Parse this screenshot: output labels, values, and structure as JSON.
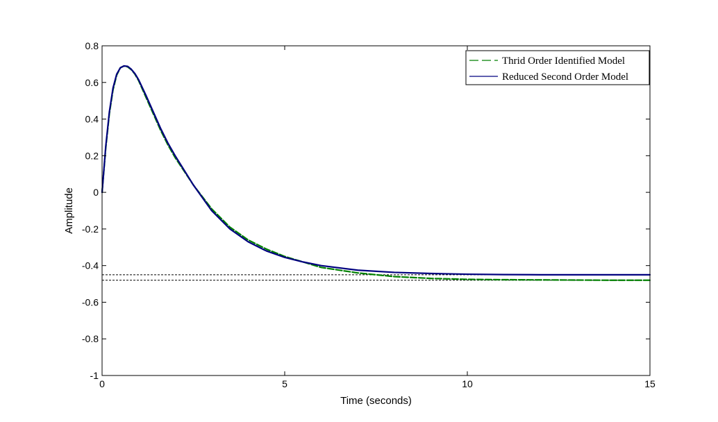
{
  "chart_data": {
    "type": "line",
    "title": "",
    "xlabel": "Time (seconds)",
    "ylabel": "Amplitude",
    "xlim": [
      0,
      15
    ],
    "ylim": [
      -1,
      0.8
    ],
    "xticks": [
      0,
      5,
      10,
      15
    ],
    "yticks": [
      -1,
      -0.8,
      -0.6,
      -0.4,
      -0.2,
      0,
      0.2,
      0.4,
      0.6,
      0.8
    ],
    "grid": false,
    "legend_position": "top-right",
    "series": [
      {
        "name": "Thrid Order Identified Model",
        "color": "#007f00",
        "dash": "dashed",
        "x": [
          0,
          0.1,
          0.2,
          0.3,
          0.4,
          0.5,
          0.6,
          0.7,
          0.8,
          0.9,
          1.0,
          1.2,
          1.4,
          1.6,
          1.8,
          2.0,
          2.5,
          3.0,
          3.5,
          4.0,
          4.5,
          5.0,
          5.5,
          6.0,
          7.0,
          8.0,
          9.0,
          10.0,
          11.0,
          12.0,
          13.0,
          14.0,
          15.0
        ],
        "y": [
          0,
          0.24,
          0.43,
          0.56,
          0.64,
          0.68,
          0.69,
          0.685,
          0.67,
          0.645,
          0.61,
          0.52,
          0.43,
          0.34,
          0.26,
          0.19,
          0.04,
          -0.09,
          -0.19,
          -0.26,
          -0.31,
          -0.35,
          -0.38,
          -0.41,
          -0.44,
          -0.46,
          -0.47,
          -0.475,
          -0.477,
          -0.478,
          -0.479,
          -0.48,
          -0.48
        ]
      },
      {
        "name": "Reduced Second Order Model",
        "color": "#00007f",
        "dash": "solid",
        "x": [
          0,
          0.1,
          0.2,
          0.3,
          0.4,
          0.5,
          0.6,
          0.7,
          0.8,
          0.9,
          1.0,
          1.2,
          1.4,
          1.6,
          1.8,
          2.0,
          2.5,
          3.0,
          3.5,
          4.0,
          4.5,
          5.0,
          5.5,
          6.0,
          7.0,
          8.0,
          9.0,
          10.0,
          11.0,
          12.0,
          13.0,
          14.0,
          15.0
        ],
        "y": [
          0,
          0.25,
          0.44,
          0.57,
          0.645,
          0.68,
          0.69,
          0.688,
          0.672,
          0.648,
          0.615,
          0.53,
          0.44,
          0.35,
          0.27,
          0.2,
          0.04,
          -0.1,
          -0.2,
          -0.27,
          -0.32,
          -0.355,
          -0.38,
          -0.4,
          -0.425,
          -0.437,
          -0.443,
          -0.447,
          -0.449,
          -0.45,
          -0.45,
          -0.45,
          -0.45
        ]
      }
    ],
    "reference_lines": [
      {
        "y": -0.45,
        "style": "dotted",
        "color": "#000000"
      },
      {
        "y": -0.48,
        "style": "dotted",
        "color": "#000000"
      }
    ]
  }
}
